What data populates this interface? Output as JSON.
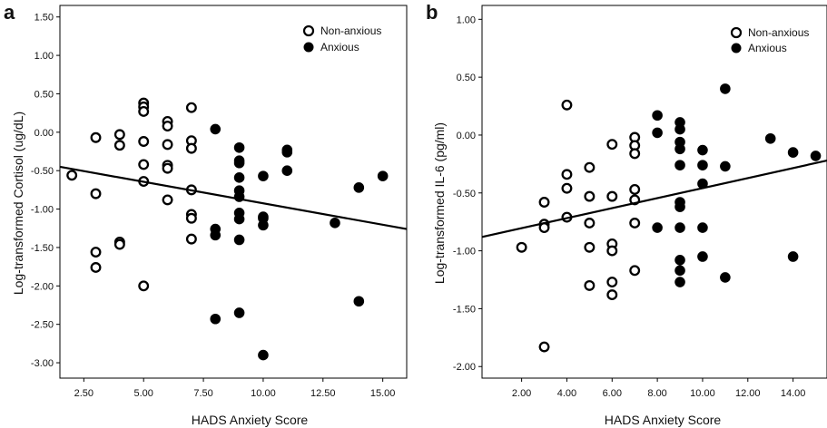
{
  "chart_data": [
    {
      "type": "scatter",
      "panel_label": "a",
      "xlabel": "HADS Anxiety Score",
      "ylabel": "Log-transformed Cortisol (ug/dL)",
      "xlim": [
        1.5,
        16.0
      ],
      "ylim": [
        -3.2,
        1.65
      ],
      "x_ticks": [
        2.5,
        5.0,
        7.5,
        10.0,
        12.5,
        15.0
      ],
      "x_tick_labels": [
        "2.50",
        "5.00",
        "7.50",
        "10.00",
        "12.50",
        "15.00"
      ],
      "y_ticks": [
        1.5,
        1.0,
        0.5,
        0.0,
        -0.5,
        -1.0,
        -1.5,
        -2.0,
        -2.5,
        -3.0
      ],
      "y_tick_labels": [
        "1.50",
        "1.00",
        "0.50",
        "0.00",
        "-0.50",
        "-1.00",
        "-1.50",
        "-2.00",
        "-2.50",
        "-3.00"
      ],
      "legend": {
        "position": "top-right",
        "entries": [
          "Non-anxious",
          "Anxious"
        ]
      },
      "fit_line": {
        "x": [
          1.5,
          16.0
        ],
        "y": [
          -0.45,
          -1.26
        ]
      },
      "series": [
        {
          "name": "Non-anxious",
          "marker": "open-circle",
          "points": [
            [
              2,
              -0.56
            ],
            [
              3,
              -0.07
            ],
            [
              3,
              -0.8
            ],
            [
              3,
              -1.56
            ],
            [
              3,
              -1.76
            ],
            [
              4,
              -0.03
            ],
            [
              4,
              -0.17
            ],
            [
              4,
              -1.43
            ],
            [
              4,
              -1.46
            ],
            [
              5,
              0.38
            ],
            [
              5,
              0.33
            ],
            [
              5,
              0.27
            ],
            [
              5,
              -0.12
            ],
            [
              5,
              -0.42
            ],
            [
              5,
              -0.64
            ],
            [
              5,
              -2.0
            ],
            [
              6,
              0.14
            ],
            [
              6,
              0.08
            ],
            [
              6,
              -0.16
            ],
            [
              6,
              -0.43
            ],
            [
              6,
              -0.47
            ],
            [
              6,
              -0.88
            ],
            [
              7,
              0.32
            ],
            [
              7,
              -0.11
            ],
            [
              7,
              -0.21
            ],
            [
              7,
              -0.75
            ],
            [
              7,
              -1.07
            ],
            [
              7,
              -1.12
            ],
            [
              7,
              -1.39
            ]
          ]
        },
        {
          "name": "Anxious",
          "marker": "filled-circle",
          "points": [
            [
              8,
              0.04
            ],
            [
              8,
              -1.26
            ],
            [
              8,
              -1.34
            ],
            [
              8,
              -2.43
            ],
            [
              9,
              -0.2
            ],
            [
              9,
              -0.37
            ],
            [
              9,
              -0.4
            ],
            [
              9,
              -0.59
            ],
            [
              9,
              -0.76
            ],
            [
              9,
              -0.84
            ],
            [
              9,
              -1.05
            ],
            [
              9,
              -1.13
            ],
            [
              9,
              -1.4
            ],
            [
              9,
              -2.35
            ],
            [
              10,
              -0.57
            ],
            [
              10,
              -1.1
            ],
            [
              10,
              -1.12
            ],
            [
              10,
              -1.21
            ],
            [
              10,
              -2.9
            ],
            [
              11,
              -0.23
            ],
            [
              11,
              -0.26
            ],
            [
              11,
              -0.5
            ],
            [
              13,
              -1.18
            ],
            [
              14,
              -0.72
            ],
            [
              14,
              -2.2
            ],
            [
              15,
              -0.57
            ]
          ]
        }
      ]
    },
    {
      "type": "scatter",
      "panel_label": "b",
      "xlabel": "HADS Anxiety Score",
      "ylabel": "Log-transformed IL-6 (pg/ml)",
      "xlim": [
        0.25,
        15.5
      ],
      "ylim": [
        -2.1,
        1.12
      ],
      "x_ticks": [
        2,
        4,
        6,
        8,
        10,
        12,
        14
      ],
      "x_tick_labels": [
        "2.00",
        "4.00",
        "6.00",
        "8.00",
        "10.00",
        "12.00",
        "14.00"
      ],
      "y_ticks": [
        1.0,
        0.5,
        0.0,
        -0.5,
        -1.0,
        -1.5,
        -2.0
      ],
      "y_tick_labels": [
        "1.00",
        "0.50",
        "0.00",
        "-0.50",
        "-1.00",
        "-1.50",
        "-2.00"
      ],
      "legend": {
        "position": "top-right",
        "entries": [
          "Non-anxious",
          "Anxious"
        ]
      },
      "fit_line": {
        "x": [
          0.25,
          15.5
        ],
        "y": [
          -0.88,
          -0.22
        ]
      },
      "series": [
        {
          "name": "Non-anxious",
          "marker": "open-circle",
          "points": [
            [
              2,
              -0.97
            ],
            [
              3,
              -0.58
            ],
            [
              3,
              -0.77
            ],
            [
              3,
              -0.8
            ],
            [
              3,
              -1.83
            ],
            [
              4,
              0.26
            ],
            [
              4,
              -0.34
            ],
            [
              4,
              -0.46
            ],
            [
              4,
              -0.71
            ],
            [
              5,
              -0.28
            ],
            [
              5,
              -0.53
            ],
            [
              5,
              -0.76
            ],
            [
              5,
              -0.97
            ],
            [
              5,
              -1.3
            ],
            [
              6,
              -0.08
            ],
            [
              6,
              -0.53
            ],
            [
              6,
              -0.94
            ],
            [
              6,
              -1.0
            ],
            [
              6,
              -1.27
            ],
            [
              6,
              -1.38
            ],
            [
              7,
              -0.02
            ],
            [
              7,
              -0.09
            ],
            [
              7,
              -0.16
            ],
            [
              7,
              -0.47
            ],
            [
              7,
              -0.56
            ],
            [
              7,
              -0.76
            ],
            [
              7,
              -1.17
            ]
          ]
        },
        {
          "name": "Anxious",
          "marker": "filled-circle",
          "points": [
            [
              8,
              0.17
            ],
            [
              8,
              0.02
            ],
            [
              8,
              -0.8
            ],
            [
              9,
              0.11
            ],
            [
              9,
              0.05
            ],
            [
              9,
              -0.06
            ],
            [
              9,
              -0.12
            ],
            [
              9,
              -0.26
            ],
            [
              9,
              -0.58
            ],
            [
              9,
              -0.62
            ],
            [
              9,
              -0.8
            ],
            [
              9,
              -1.08
            ],
            [
              9,
              -1.17
            ],
            [
              9,
              -1.27
            ],
            [
              10,
              -0.13
            ],
            [
              10,
              -0.26
            ],
            [
              10,
              -0.42
            ],
            [
              10,
              -0.8
            ],
            [
              10,
              -1.05
            ],
            [
              11,
              0.4
            ],
            [
              11,
              -0.27
            ],
            [
              11,
              -1.23
            ],
            [
              13,
              -0.03
            ],
            [
              14,
              -0.15
            ],
            [
              14,
              -1.05
            ],
            [
              15,
              -0.18
            ]
          ]
        }
      ]
    }
  ]
}
